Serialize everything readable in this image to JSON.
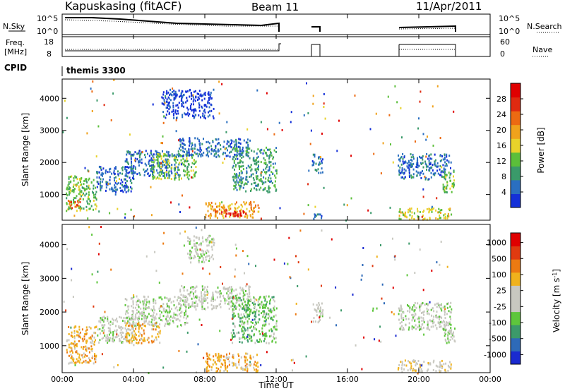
{
  "header": {
    "radar_title": "Kapuskasing (fitACF)",
    "beam_label": "Beam 11",
    "date_label": "11/Apr/2011"
  },
  "top_panels": {
    "nsky_label": "N.Sky",
    "nsky_ticks": [
      "10^5",
      "10^0"
    ],
    "nsearch_label": "N.Search",
    "nsearch_ticks": [
      "10^5",
      "10^0"
    ],
    "freq_label_line1": "Freq.",
    "freq_label_line2": "[MHz]",
    "freq_ticks": [
      "18",
      "8"
    ],
    "nave_label": "Nave",
    "nave_ticks": [
      "60",
      "0"
    ],
    "cpid_label": "CPID",
    "cpid_value": "themis 3300"
  },
  "x_axis": {
    "label": "Time UT",
    "ticks": [
      "00:00",
      "04:00",
      "08:00",
      "12:00",
      "16:00",
      "20:00",
      "00:00"
    ]
  },
  "colors": {
    "power_scale": [
      "#1430d8",
      "#2a6fc0",
      "#3a9a6a",
      "#5bbf3a",
      "#e8d22a",
      "#f0a21c",
      "#ec6a12",
      "#e02a10",
      "#e00000"
    ],
    "velocity_scale": [
      "#1a2ad0",
      "#2e6ab8",
      "#3c9a6a",
      "#5ec63c",
      "#c8c8c0",
      "#c8c8c0",
      "#f0b21c",
      "#ec7a12",
      "#e03a10",
      "#e00000"
    ]
  },
  "chart_data": [
    {
      "type": "heatmap",
      "title": "Power",
      "ylabel": "Slant Range [km]",
      "xlabel": "",
      "ylim": [
        200,
        4600
      ],
      "xlim": [
        0,
        24
      ],
      "y_ticks": [
        "1000",
        "2000",
        "3000",
        "4000"
      ],
      "colorbar_label": "Power [dB]",
      "colorbar_ticks": [
        "4",
        "8",
        "12",
        "16",
        "20",
        "24",
        "28"
      ],
      "regions": [
        {
          "t0": 0.2,
          "t1": 1.9,
          "r0": 500,
          "r1": 1600,
          "level": 3
        },
        {
          "t0": 0.3,
          "t1": 1.0,
          "r0": 550,
          "r1": 900,
          "level": 6
        },
        {
          "t0": 1.9,
          "t1": 4.0,
          "r0": 1100,
          "r1": 1900,
          "level": 1
        },
        {
          "t0": 3.5,
          "t1": 6.5,
          "r0": 1600,
          "r1": 2400,
          "level": 1
        },
        {
          "t0": 5.0,
          "t1": 7.5,
          "r0": 1500,
          "r1": 2300,
          "level": 3
        },
        {
          "t0": 6.5,
          "t1": 10.5,
          "r0": 2200,
          "r1": 2800,
          "level": 1
        },
        {
          "t0": 9.5,
          "t1": 12.0,
          "r0": 1100,
          "r1": 2500,
          "level": 2
        },
        {
          "t0": 8.0,
          "t1": 11.0,
          "r0": 300,
          "r1": 800,
          "level": 5
        },
        {
          "t0": 8.8,
          "t1": 10.5,
          "r0": 350,
          "r1": 550,
          "level": 8
        },
        {
          "t0": 14.0,
          "t1": 14.6,
          "r0": 1700,
          "r1": 2300,
          "level": 1
        },
        {
          "t0": 14.0,
          "t1": 14.6,
          "r0": 250,
          "r1": 450,
          "level": 1
        },
        {
          "t0": 18.8,
          "t1": 21.8,
          "r0": 1500,
          "r1": 2300,
          "level": 1
        },
        {
          "t0": 18.8,
          "t1": 21.8,
          "r0": 250,
          "r1": 600,
          "level": 4
        },
        {
          "t0": 21.3,
          "t1": 22.0,
          "r0": 1100,
          "r1": 1800,
          "level": 3
        },
        {
          "t0": 5.5,
          "t1": 8.5,
          "r0": 3400,
          "r1": 4300,
          "level": 0
        }
      ]
    },
    {
      "type": "heatmap",
      "title": "Velocity",
      "ylabel": "Slant Range [km]",
      "xlabel": "Time UT",
      "ylim": [
        200,
        4600
      ],
      "xlim": [
        0,
        24
      ],
      "y_ticks": [
        "1000",
        "2000",
        "3000",
        "4000"
      ],
      "colorbar_label": "Velocity [m s^-1]",
      "colorbar_ticks": [
        "1000",
        "500",
        "100",
        "25",
        "-25",
        "-100",
        "-500",
        "-1000"
      ],
      "regions": [
        {
          "t0": 0.2,
          "t1": 1.9,
          "r0": 500,
          "r1": 1600,
          "level": 6
        },
        {
          "t0": 1.9,
          "t1": 4.0,
          "r0": 1100,
          "r1": 1900,
          "level": 4
        },
        {
          "t0": 3.5,
          "t1": 7.0,
          "r0": 1600,
          "r1": 2500,
          "level": 4
        },
        {
          "t0": 6.5,
          "t1": 10.5,
          "r0": 2100,
          "r1": 2800,
          "level": 4
        },
        {
          "t0": 9.5,
          "t1": 12.0,
          "r0": 1100,
          "r1": 2500,
          "level": 3
        },
        {
          "t0": 8.0,
          "t1": 11.0,
          "r0": 250,
          "r1": 800,
          "level": 6
        },
        {
          "t0": 3.5,
          "t1": 5.5,
          "r0": 1100,
          "r1": 1700,
          "level": 6
        },
        {
          "t0": 14.0,
          "t1": 14.6,
          "r0": 1700,
          "r1": 2300,
          "level": 4
        },
        {
          "t0": 18.8,
          "t1": 21.8,
          "r0": 1500,
          "r1": 2300,
          "level": 4
        },
        {
          "t0": 18.8,
          "t1": 21.8,
          "r0": 250,
          "r1": 600,
          "level": 5
        },
        {
          "t0": 21.3,
          "t1": 22.0,
          "r0": 1100,
          "r1": 1800,
          "level": 4
        },
        {
          "t0": 7.0,
          "t1": 8.5,
          "r0": 3500,
          "r1": 4300,
          "level": 4
        }
      ]
    }
  ]
}
